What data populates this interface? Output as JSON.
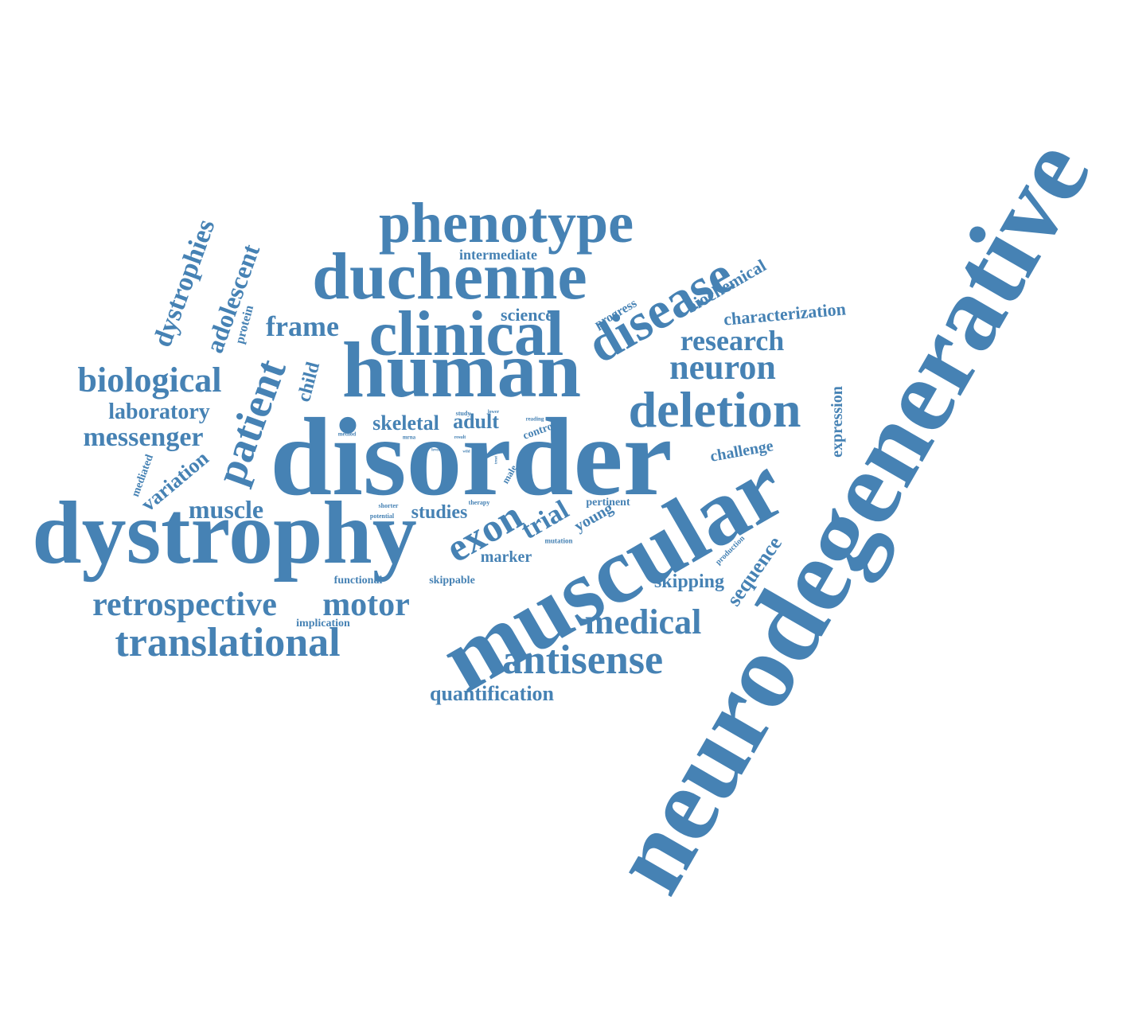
{
  "cloud": {
    "color": "#4682b4",
    "words": {
      "neurodegenerative": "neurodegenerative",
      "disorder": "disorder",
      "dystrophy": "dystrophy",
      "muscular": "muscular",
      "human": "human",
      "duchenne": "duchenne",
      "clinical": "clinical",
      "phenotype": "phenotype",
      "disease": "disease",
      "deletion": "deletion",
      "translational": "translational",
      "antisense": "antisense",
      "retrospective": "retrospective",
      "motor": "motor",
      "medical": "medical",
      "biological": "biological",
      "patient": "patient",
      "neuron": "neuron",
      "research": "research",
      "frame": "frame",
      "messenger": "messenger",
      "exon": "exon",
      "laboratory": "laboratory",
      "muscle": "muscle",
      "dystrophies": "dystrophies",
      "adolescent": "adolescent",
      "characterization": "characterization",
      "biochemical": "biochemical",
      "quantification": "quantification",
      "skipping": "skipping",
      "sequence": "sequence",
      "trial": "trial",
      "skeletal": "skeletal",
      "adult": "adult",
      "studies": "studies",
      "science": "science",
      "intermediate": "intermediate",
      "child": "child",
      "variation": "variation",
      "challenge": "challenge",
      "expression": "expression",
      "marker": "marker",
      "young": "young",
      "pertinent": "pertinent",
      "functional": "functional",
      "skippable": "skippable",
      "implication": "implication",
      "protein": "protein",
      "progress": "progress",
      "mediated": "mediated",
      "control": "control",
      "male": "male",
      "production": "production",
      "mutation": "mutation",
      "therapy": "therapy",
      "shorter": "shorter",
      "potential": "potential",
      "analysis": "analysis",
      "study": "study",
      "lower": "lower",
      "reading": "reading",
      "method": "method",
      "mrna": "mrna",
      "result": "result",
      "level": "level",
      "wild": "wild",
      "treat": "treat"
    }
  }
}
